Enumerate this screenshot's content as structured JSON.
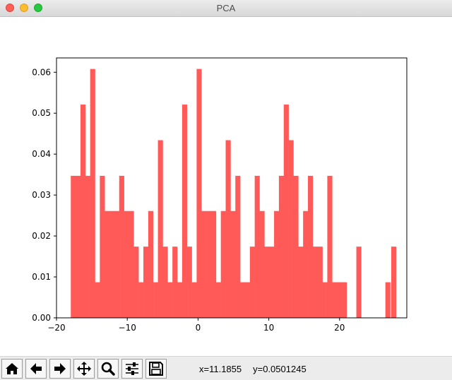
{
  "window": {
    "title": "PCA"
  },
  "toolbar": {
    "buttons": [
      {
        "name": "home-button",
        "icon": "home-icon"
      },
      {
        "name": "back-button",
        "icon": "arrow-left-icon"
      },
      {
        "name": "forward-button",
        "icon": "arrow-right-icon"
      },
      {
        "name": "pan-button",
        "icon": "move-icon"
      },
      {
        "name": "zoom-button",
        "icon": "magnifier-icon"
      },
      {
        "name": "configure-subplots-button",
        "icon": "sliders-icon"
      },
      {
        "name": "save-button",
        "icon": "floppy-disk-icon"
      }
    ],
    "coord_x": "x=11.1855",
    "coord_y": "y=0.0501245"
  },
  "chart_data": {
    "type": "bar",
    "title": "",
    "xlabel": "",
    "ylabel": "",
    "color": "#ff5a57",
    "xlim": [
      -20.0,
      29.5
    ],
    "ylim": [
      0,
      0.0635
    ],
    "bin_start": -17.98,
    "bin_width": 0.6839,
    "values": [
      0.0347,
      0.0347,
      0.0521,
      0.0347,
      0.0608,
      0.0087,
      0.0347,
      0.0261,
      0.0261,
      0.0261,
      0.0347,
      0.0261,
      0.0261,
      0.0174,
      0.0087,
      0.0174,
      0.0261,
      0.0087,
      0.0434,
      0.0174,
      0.0087,
      0.0174,
      0.0087,
      0.0521,
      0.0174,
      0.0087,
      0.0608,
      0.0261,
      0.0261,
      0.0261,
      0.0087,
      0.0261,
      0.0434,
      0.0261,
      0.0347,
      0.0087,
      0.0087,
      0.0174,
      0.0347,
      0.0261,
      0.0174,
      0.0174,
      0.0261,
      0.0347,
      0.0521,
      0.0434,
      0.0347,
      0.0174,
      0.0261,
      0.0347,
      0.0174,
      0.0174,
      0.0087,
      0.0347,
      0.0087,
      0.0087,
      0.0087,
      0.0,
      0.0,
      0.0174,
      0.0,
      0.0,
      0.0,
      0.0,
      0.0,
      0.0087,
      0.0,
      0.0,
      0.0,
      0.0,
      0.0,
      0.0,
      0.0,
      0.0,
      0.0,
      0.0,
      0.0,
      0.0,
      0.0,
      0.0,
      0.0,
      0.0,
      0.0,
      0.0,
      0.0,
      0.0,
      0.0,
      0.0,
      0.0,
      0.0,
      0.0,
      0.0,
      0.0,
      0.0,
      0.0,
      0.0,
      0.0,
      0.0,
      0.0,
      0.0,
      0.0,
      0.0,
      0.0,
      0.0,
      0.0,
      0.0,
      0.0,
      0.0,
      0.0,
      0.0,
      0.0,
      0.0,
      0.0,
      0.0,
      0.0,
      0.0,
      0.0,
      0.0,
      0.0,
      0.0,
      0.0,
      0.0,
      0.0,
      0.0,
      0.0,
      0.0,
      0.0,
      0.0,
      0.0,
      0.0,
      0.0,
      0.0,
      0.0,
      0.0,
      0.0
    ],
    "extra_bars": [
      {
        "x": 27.3,
        "value": 0.0174
      }
    ],
    "x_ticks": [
      -20,
      -10,
      0,
      10,
      20
    ],
    "x_tick_labels": [
      "−20",
      "−10",
      "0",
      "10",
      "20"
    ],
    "y_ticks": [
      0.0,
      0.01,
      0.02,
      0.03,
      0.04,
      0.05,
      0.06
    ],
    "y_tick_labels": [
      "0.00",
      "0.01",
      "0.02",
      "0.03",
      "0.04",
      "0.05",
      "0.06"
    ],
    "grid": false,
    "legend": "none"
  }
}
